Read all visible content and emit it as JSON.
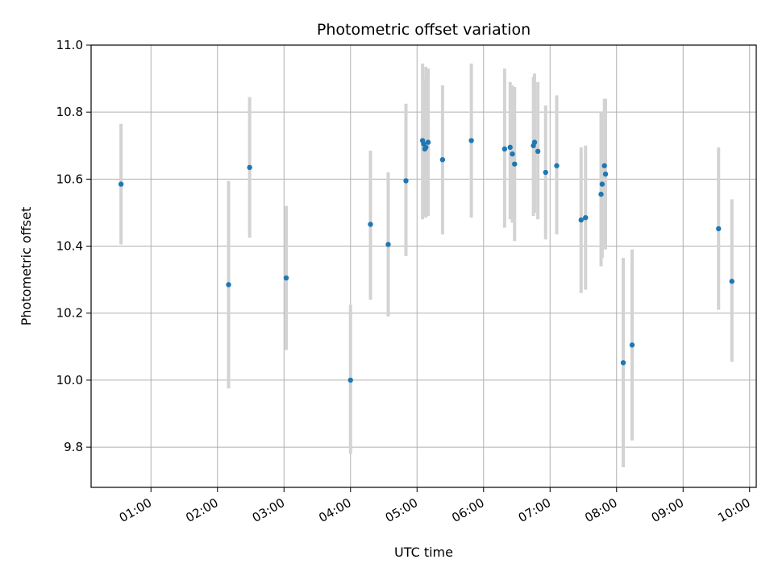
{
  "chart_data": {
    "type": "scatter",
    "title": "Photometric offset variation",
    "xlabel": "UTC time",
    "ylabel": "Photometric offset",
    "x_ticks": [
      "01:00",
      "02:00",
      "03:00",
      "04:00",
      "05:00",
      "06:00",
      "07:00",
      "08:00",
      "09:00",
      "10:00"
    ],
    "xlim": [
      "00:06",
      "10:06"
    ],
    "ylim": [
      9.68,
      11.0
    ],
    "y_ticks": [
      9.8,
      10.0,
      10.2,
      10.4,
      10.6,
      10.8,
      11.0
    ],
    "grid": true,
    "colors": {
      "points": "#1f77b4",
      "errorbars": "#d3d3d3"
    },
    "points": [
      {
        "x": "00:33",
        "y": 10.585,
        "lo": 10.405,
        "hi": 10.765
      },
      {
        "x": "02:10",
        "y": 10.285,
        "lo": 9.975,
        "hi": 10.595
      },
      {
        "x": "02:29",
        "y": 10.635,
        "lo": 10.425,
        "hi": 10.845
      },
      {
        "x": "03:02",
        "y": 10.305,
        "lo": 10.09,
        "hi": 10.52
      },
      {
        "x": "04:00",
        "y": 10.0,
        "lo": 9.78,
        "hi": 10.225
      },
      {
        "x": "04:18",
        "y": 10.465,
        "lo": 10.24,
        "hi": 10.685
      },
      {
        "x": "04:34",
        "y": 10.405,
        "lo": 10.19,
        "hi": 10.62
      },
      {
        "x": "04:50",
        "y": 10.595,
        "lo": 10.37,
        "hi": 10.825
      },
      {
        "x": "05:05",
        "y": 10.715,
        "lo": 10.48,
        "hi": 10.945
      },
      {
        "x": "05:06",
        "y": 10.705,
        "lo": 10.49,
        "hi": 10.9
      },
      {
        "x": "05:07",
        "y": 10.69,
        "lo": 10.5,
        "hi": 10.88
      },
      {
        "x": "05:08",
        "y": 10.695,
        "lo": 10.485,
        "hi": 10.935
      },
      {
        "x": "05:10",
        "y": 10.71,
        "lo": 10.49,
        "hi": 10.93
      },
      {
        "x": "05:23",
        "y": 10.658,
        "lo": 10.435,
        "hi": 10.88
      },
      {
        "x": "05:49",
        "y": 10.715,
        "lo": 10.485,
        "hi": 10.945
      },
      {
        "x": "06:19",
        "y": 10.69,
        "lo": 10.455,
        "hi": 10.93
      },
      {
        "x": "06:24",
        "y": 10.695,
        "lo": 10.48,
        "hi": 10.89
      },
      {
        "x": "06:26",
        "y": 10.675,
        "lo": 10.47,
        "hi": 10.88
      },
      {
        "x": "06:28",
        "y": 10.645,
        "lo": 10.415,
        "hi": 10.875
      },
      {
        "x": "06:45",
        "y": 10.7,
        "lo": 10.49,
        "hi": 10.905
      },
      {
        "x": "06:46",
        "y": 10.71,
        "lo": 10.5,
        "hi": 10.915
      },
      {
        "x": "06:49",
        "y": 10.683,
        "lo": 10.48,
        "hi": 10.89
      },
      {
        "x": "06:56",
        "y": 10.62,
        "lo": 10.42,
        "hi": 10.82
      },
      {
        "x": "07:06",
        "y": 10.64,
        "lo": 10.435,
        "hi": 10.85
      },
      {
        "x": "07:28",
        "y": 10.478,
        "lo": 10.26,
        "hi": 10.695
      },
      {
        "x": "07:32",
        "y": 10.485,
        "lo": 10.27,
        "hi": 10.7
      },
      {
        "x": "07:46",
        "y": 10.555,
        "lo": 10.34,
        "hi": 10.8
      },
      {
        "x": "07:47",
        "y": 10.585,
        "lo": 10.365,
        "hi": 10.8
      },
      {
        "x": "07:49",
        "y": 10.64,
        "lo": 10.4,
        "hi": 10.84
      },
      {
        "x": "07:50",
        "y": 10.615,
        "lo": 10.39,
        "hi": 10.84
      },
      {
        "x": "08:06",
        "y": 10.052,
        "lo": 9.74,
        "hi": 10.365
      },
      {
        "x": "08:14",
        "y": 10.105,
        "lo": 9.82,
        "hi": 10.39
      },
      {
        "x": "09:32",
        "y": 10.452,
        "lo": 10.21,
        "hi": 10.695
      },
      {
        "x": "09:44",
        "y": 10.295,
        "lo": 10.055,
        "hi": 10.54
      }
    ]
  }
}
